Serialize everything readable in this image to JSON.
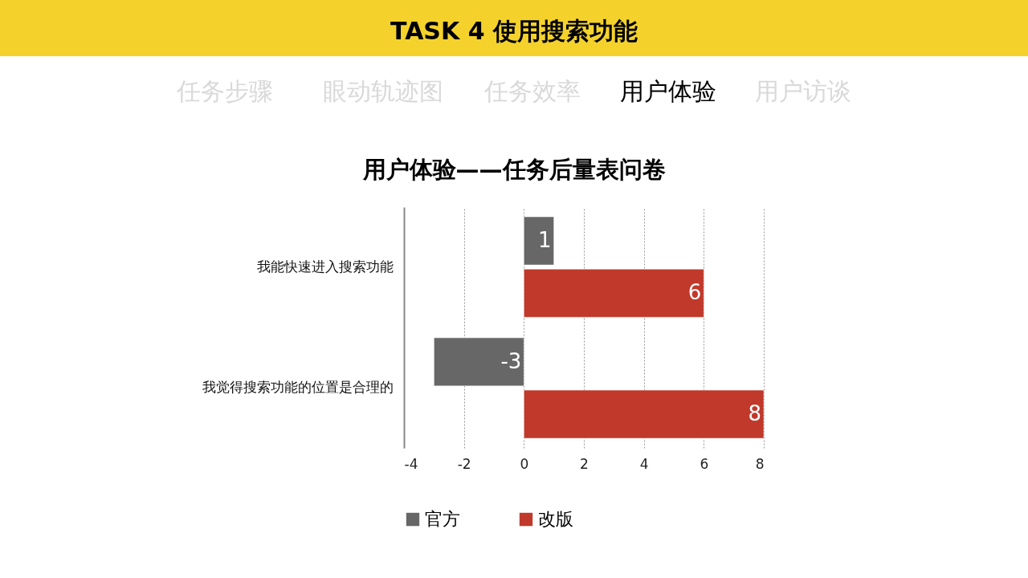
{
  "chart_data": {
    "type": "bar",
    "orientation": "horizontal",
    "title": "TASK 4 使用搜索功能",
    "subtitle": "用户体验——任务后量表问卷",
    "annotations": [
      "任务步骤",
      "眼动轨迹图",
      "任务效率",
      "用户体验",
      "用户访谈"
    ],
    "categories": [
      "我能快速进入搜索功能",
      "我觉得搜索功能的位置是合理的"
    ],
    "series": [
      {
        "name": "官方",
        "color": "#676767",
        "values": [
          1,
          -3
        ]
      },
      {
        "name": "改版",
        "color": "#c0392b",
        "values": [
          6,
          8
        ]
      }
    ],
    "xlim": [
      -4,
      8
    ],
    "xticks": [
      -4,
      -2,
      0,
      2,
      4,
      6,
      8
    ],
    "grid": "x",
    "data_labels": true,
    "legend": "bottom"
  }
}
